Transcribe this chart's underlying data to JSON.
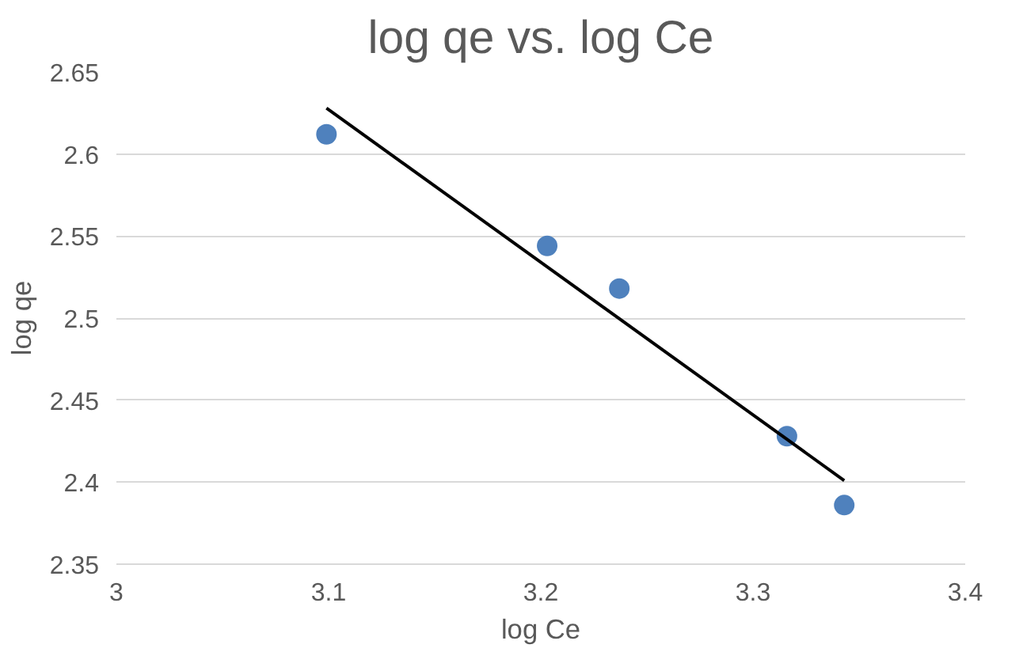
{
  "chart_data": {
    "type": "scatter",
    "title": "log qe vs. log Ce",
    "xlabel": "log Ce",
    "ylabel": "log qe",
    "xlim": [
      3,
      3.4
    ],
    "xticks": [
      {
        "value": 3,
        "label": "3"
      },
      3.1,
      3.2,
      3.3,
      {
        "value": 3.4,
        "label": "3.4"
      }
    ],
    "ylim": [
      2.35,
      2.65
    ],
    "yticks": [
      2.35,
      {
        "value": 2.4,
        "label": "2.4"
      },
      2.45,
      {
        "value": 2.5,
        "label": "2.5"
      },
      2.55,
      {
        "value": 2.6,
        "label": "2.6"
      },
      2.65
    ],
    "grid": "y",
    "series": [
      {
        "marker": "circle",
        "color": "#4f81bd",
        "x": [
          3.099,
          3.203,
          3.237,
          3.316,
          3.343
        ],
        "values": [
          2.612,
          2.544,
          2.518,
          2.428,
          2.386
        ]
      },
      {
        "type": "line",
        "color": "#000000",
        "x": [
          3.099,
          3.343
        ],
        "values": [
          2.628,
          2.401
        ]
      }
    ]
  }
}
